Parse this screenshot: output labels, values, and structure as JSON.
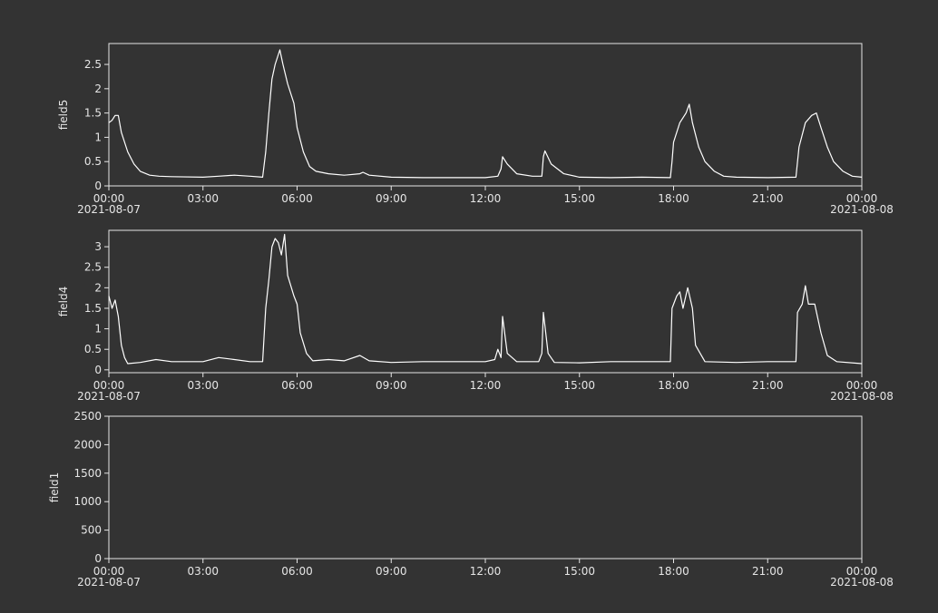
{
  "chart_data": [
    {
      "type": "line",
      "ylabel": "field5",
      "color": "#ffffff",
      "xlim": [
        0,
        24
      ],
      "ylim": [
        0,
        2.93
      ],
      "xticks": [
        {
          "value": 0,
          "label": "00:00",
          "date": "2021-08-07"
        },
        {
          "value": 3,
          "label": "03:00"
        },
        {
          "value": 6,
          "label": "06:00"
        },
        {
          "value": 9,
          "label": "09:00"
        },
        {
          "value": 12,
          "label": "12:00"
        },
        {
          "value": 15,
          "label": "15:00"
        },
        {
          "value": 18,
          "label": "18:00"
        },
        {
          "value": 21,
          "label": "21:00"
        },
        {
          "value": 24,
          "label": "00:00",
          "date": "2021-08-08"
        }
      ],
      "yticks": [
        0.0,
        0.5,
        1.0,
        1.5,
        2.0,
        2.5
      ],
      "x": [
        0,
        0.1,
        0.2,
        0.3,
        0.4,
        0.6,
        0.8,
        1.0,
        1.3,
        1.6,
        2,
        3,
        3.5,
        4,
        4.5,
        4.9,
        5.0,
        5.1,
        5.2,
        5.3,
        5.45,
        5.55,
        5.7,
        5.9,
        6.0,
        6.2,
        6.4,
        6.6,
        7,
        7.5,
        8,
        8.1,
        8.3,
        9,
        10,
        11,
        12,
        12.4,
        12.5,
        12.55,
        12.7,
        13,
        13.5,
        13.8,
        13.85,
        13.9,
        14.1,
        14.5,
        15,
        16,
        17,
        17.9,
        17.95,
        18.0,
        18.2,
        18.4,
        18.5,
        18.6,
        18.8,
        19,
        19.3,
        19.6,
        20,
        21,
        21.9,
        22.0,
        22.2,
        22.4,
        22.55,
        22.7,
        22.9,
        23.1,
        23.4,
        23.7,
        24
      ],
      "values": [
        1.3,
        1.35,
        1.45,
        1.45,
        1.1,
        0.7,
        0.45,
        0.3,
        0.22,
        0.2,
        0.19,
        0.18,
        0.2,
        0.22,
        0.2,
        0.18,
        0.7,
        1.5,
        2.2,
        2.5,
        2.8,
        2.5,
        2.1,
        1.7,
        1.2,
        0.7,
        0.4,
        0.3,
        0.25,
        0.22,
        0.25,
        0.28,
        0.22,
        0.18,
        0.17,
        0.17,
        0.17,
        0.2,
        0.35,
        0.6,
        0.45,
        0.25,
        0.2,
        0.2,
        0.6,
        0.72,
        0.45,
        0.25,
        0.18,
        0.17,
        0.18,
        0.17,
        0.5,
        0.9,
        1.3,
        1.5,
        1.68,
        1.3,
        0.8,
        0.5,
        0.3,
        0.2,
        0.18,
        0.17,
        0.18,
        0.8,
        1.3,
        1.45,
        1.5,
        1.2,
        0.8,
        0.5,
        0.3,
        0.2,
        0.18
      ]
    },
    {
      "type": "line",
      "ylabel": "field4",
      "color": "#ffffff",
      "xlim": [
        0,
        24
      ],
      "ylim": [
        -0.07,
        3.4
      ],
      "xticks": [
        {
          "value": 0,
          "label": "00:00",
          "date": "2021-08-07"
        },
        {
          "value": 3,
          "label": "03:00"
        },
        {
          "value": 6,
          "label": "06:00"
        },
        {
          "value": 9,
          "label": "09:00"
        },
        {
          "value": 12,
          "label": "12:00"
        },
        {
          "value": 15,
          "label": "15:00"
        },
        {
          "value": 18,
          "label": "18:00"
        },
        {
          "value": 21,
          "label": "21:00"
        },
        {
          "value": 24,
          "label": "00:00",
          "date": "2021-08-08"
        }
      ],
      "yticks": [
        0.0,
        0.5,
        1.0,
        1.5,
        2.0,
        2.5,
        3.0
      ],
      "x": [
        0,
        0.1,
        0.2,
        0.3,
        0.4,
        0.5,
        0.6,
        1,
        1.5,
        2,
        3,
        3.5,
        4,
        4.5,
        4.9,
        5.0,
        5.1,
        5.2,
        5.3,
        5.4,
        5.5,
        5.6,
        5.7,
        5.9,
        6.0,
        6.1,
        6.3,
        6.5,
        7,
        7.5,
        8,
        8.3,
        9,
        10,
        11,
        12,
        12.3,
        12.4,
        12.5,
        12.55,
        12.7,
        13,
        13.7,
        13.8,
        13.85,
        14,
        14.2,
        15,
        16,
        17,
        17.9,
        17.95,
        18.1,
        18.2,
        18.3,
        18.45,
        18.6,
        18.7,
        19,
        20,
        21,
        21.9,
        21.95,
        22.1,
        22.2,
        22.3,
        22.5,
        22.7,
        22.9,
        23.2,
        24
      ],
      "values": [
        1.8,
        1.5,
        1.7,
        1.3,
        0.6,
        0.3,
        0.15,
        0.18,
        0.25,
        0.2,
        0.2,
        0.3,
        0.25,
        0.2,
        0.2,
        1.5,
        2.2,
        3.0,
        3.2,
        3.1,
        2.8,
        3.3,
        2.3,
        1.8,
        1.6,
        0.9,
        0.4,
        0.22,
        0.25,
        0.22,
        0.35,
        0.22,
        0.18,
        0.2,
        0.2,
        0.2,
        0.25,
        0.5,
        0.3,
        1.3,
        0.4,
        0.2,
        0.2,
        0.4,
        1.4,
        0.4,
        0.18,
        0.17,
        0.2,
        0.2,
        0.2,
        1.5,
        1.8,
        1.9,
        1.5,
        2.0,
        1.5,
        0.6,
        0.2,
        0.18,
        0.2,
        0.2,
        1.4,
        1.6,
        2.05,
        1.6,
        1.6,
        0.9,
        0.35,
        0.2,
        0.15
      ]
    },
    {
      "type": "line",
      "ylabel": "field1",
      "color": "#ffffff",
      "xlim": [
        0,
        24
      ],
      "ylim": [
        0,
        2500
      ],
      "xticks": [
        {
          "value": 0,
          "label": "00:00",
          "date": "2021-08-07"
        },
        {
          "value": 3,
          "label": "03:00"
        },
        {
          "value": 6,
          "label": "06:00"
        },
        {
          "value": 9,
          "label": "09:00"
        },
        {
          "value": 12,
          "label": "12:00"
        },
        {
          "value": 15,
          "label": "15:00"
        },
        {
          "value": 18,
          "label": "18:00"
        },
        {
          "value": 21,
          "label": "21:00"
        },
        {
          "value": 24,
          "label": "00:00",
          "date": "2021-08-08"
        }
      ],
      "yticks": [
        0,
        500,
        1000,
        1500,
        2000,
        2500
      ],
      "x": [],
      "values": []
    }
  ]
}
